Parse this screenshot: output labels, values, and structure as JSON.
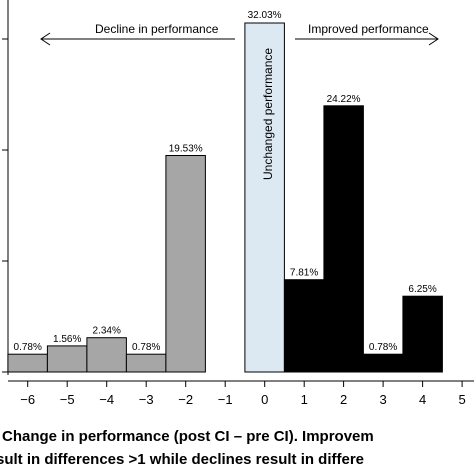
{
  "chart_data": {
    "type": "bar",
    "x": [
      -6,
      -5,
      -4,
      -3,
      -2,
      0,
      1,
      2,
      3,
      4
    ],
    "values": [
      0.78,
      1.56,
      2.34,
      0.78,
      19.53,
      32.03,
      7.81,
      24.22,
      0.78,
      6.25
    ],
    "value_labels": [
      "0.78%",
      "1.56%",
      "2.34%",
      "0.78%",
      "19.53%",
      "32.03%",
      "7.81%",
      "24.22%",
      "0.78%",
      "6.25%"
    ],
    "bar_groups": [
      "decline",
      "decline",
      "decline",
      "decline",
      "decline",
      "unchanged",
      "improved",
      "improved",
      "improved",
      "improved"
    ],
    "xticks": [
      "−6",
      "−5",
      "−4",
      "−3",
      "−2",
      "−1",
      "0",
      "1",
      "2",
      "3",
      "4",
      "5"
    ],
    "xlim": [
      -6.7,
      5.3
    ],
    "ylim": [
      -0.9,
      32.5
    ],
    "xlabel_lines": [
      "Change in performance (post CI – pre CI). Improvem",
      "sult in differences >1 while declines result in differe"
    ],
    "annotations": {
      "decline": "Decline in performance",
      "improved": "Improved performance",
      "unchanged": "Unchanged performance"
    },
    "colors": {
      "decline": "#a6a6a6",
      "unchanged": "#dce9f2",
      "improved": "#000000"
    },
    "grid": false,
    "legend": "none"
  }
}
